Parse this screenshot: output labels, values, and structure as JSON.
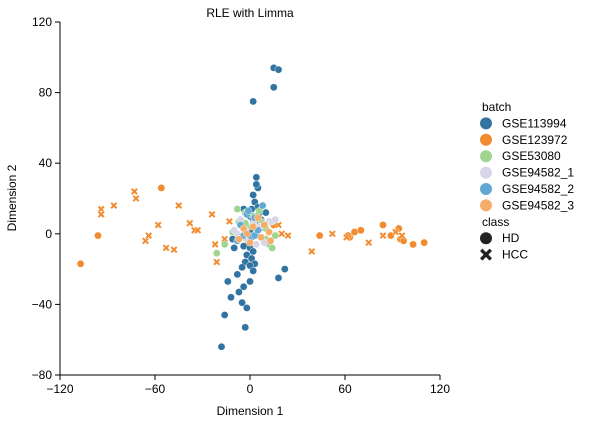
{
  "chart_data": {
    "type": "scatter",
    "title": "RLE with Limma",
    "xlabel": "Dimension 1",
    "ylabel": "Dimension 2",
    "xlim": [
      -120,
      120
    ],
    "ylim": [
      -80,
      120
    ],
    "xticks": [
      "−120",
      "−60",
      "0",
      "60",
      "120"
    ],
    "yticks": [
      "−80",
      "−40",
      "0",
      "40",
      "80",
      "120"
    ],
    "grid": false,
    "legend": {
      "placement": "right",
      "batch_title": "batch",
      "class_title": "class",
      "batches": [
        {
          "name": "GSE113994",
          "color": "#3274a1"
        },
        {
          "name": "GSE123972",
          "color": "#f28b2f"
        },
        {
          "name": "GSE53080",
          "color": "#9fd58e"
        },
        {
          "name": "GSE94582_1",
          "color": "#d6d6e8"
        },
        {
          "name": "GSE94582_2",
          "color": "#62a8d4"
        },
        {
          "name": "GSE94582_3",
          "color": "#f5ad6a"
        }
      ],
      "classes": [
        {
          "name": "HD",
          "marker": "circle"
        },
        {
          "name": "HCC",
          "marker": "cross"
        }
      ]
    },
    "series": [
      {
        "batch": "GSE113994",
        "color": "#3274a1",
        "marker": "circle",
        "points": [
          [
            15,
            94
          ],
          [
            18,
            93
          ],
          [
            15,
            83
          ],
          [
            2,
            75
          ],
          [
            4,
            32
          ],
          [
            5,
            26
          ],
          [
            4,
            28
          ],
          [
            2,
            22
          ],
          [
            3,
            18
          ],
          [
            5,
            15
          ],
          [
            1,
            14
          ],
          [
            6,
            12
          ],
          [
            0,
            10
          ],
          [
            2,
            8
          ],
          [
            4,
            6
          ],
          [
            3,
            4
          ],
          [
            1,
            3
          ],
          [
            0,
            1
          ],
          [
            2,
            -1
          ],
          [
            -2,
            -3
          ],
          [
            -1,
            -6
          ],
          [
            -4,
            -7
          ],
          [
            0,
            -8
          ],
          [
            2,
            -10
          ],
          [
            -2,
            -12
          ],
          [
            1,
            -14
          ],
          [
            -3,
            -16
          ],
          [
            3,
            -17
          ],
          [
            0,
            -18
          ],
          [
            -5,
            -19
          ],
          [
            2,
            -21
          ],
          [
            -8,
            -23
          ],
          [
            18,
            -25
          ],
          [
            22,
            -20
          ],
          [
            -14,
            -27
          ],
          [
            0,
            -27
          ],
          [
            -4,
            -30
          ],
          [
            -7,
            -33
          ],
          [
            -12,
            -36
          ],
          [
            -5,
            -39
          ],
          [
            -2,
            -42
          ],
          [
            -16,
            -46
          ],
          [
            -3,
            -53
          ],
          [
            -18,
            -64
          ],
          [
            -11,
            -3
          ],
          [
            -10,
            -8
          ],
          [
            7,
            8
          ],
          [
            10,
            12
          ],
          [
            -4,
            14
          ],
          [
            6,
            3
          ]
        ]
      },
      {
        "batch": "GSE123972",
        "color": "#f28b2f",
        "marker": "circle",
        "points": [
          [
            -107,
            -17
          ],
          [
            -96,
            -1
          ],
          [
            -56,
            26
          ],
          [
            15,
            5
          ],
          [
            44,
            -1
          ],
          [
            63,
            -2
          ],
          [
            66,
            1
          ],
          [
            70,
            2
          ],
          [
            84,
            5
          ],
          [
            89,
            -1
          ],
          [
            94,
            3
          ],
          [
            95,
            -3
          ],
          [
            97,
            -4
          ],
          [
            103,
            -6
          ],
          [
            110,
            -5
          ],
          [
            62,
            -1
          ]
        ]
      },
      {
        "batch": "GSE123972",
        "color": "#f28b2f",
        "marker": "cross",
        "points": [
          [
            -94,
            14
          ],
          [
            -94,
            11
          ],
          [
            -86,
            16
          ],
          [
            -73,
            24
          ],
          [
            -72,
            20
          ],
          [
            -66,
            -4
          ],
          [
            -64,
            -1
          ],
          [
            -58,
            5
          ],
          [
            -53,
            -8
          ],
          [
            -48,
            -9
          ],
          [
            -45,
            16
          ],
          [
            -38,
            6
          ],
          [
            -35,
            2
          ],
          [
            -33,
            2
          ],
          [
            -24,
            11
          ],
          [
            -22,
            -6
          ],
          [
            -21,
            -16
          ],
          [
            -16,
            -3
          ],
          [
            -13,
            7
          ],
          [
            18,
            5
          ],
          [
            20,
            0
          ],
          [
            24,
            -1
          ],
          [
            39,
            -10
          ],
          [
            52,
            0
          ],
          [
            61,
            -2
          ],
          [
            75,
            -5
          ],
          [
            84,
            -1
          ],
          [
            92,
            1
          ],
          [
            96,
            -1
          ]
        ]
      },
      {
        "batch": "GSE53080",
        "color": "#9fd58e",
        "marker": "circle",
        "points": [
          [
            -8,
            14
          ],
          [
            -3,
            12
          ],
          [
            2,
            10
          ],
          [
            6,
            13
          ],
          [
            10,
            3
          ],
          [
            -1,
            4
          ],
          [
            4,
            -1
          ],
          [
            -5,
            -2
          ],
          [
            -11,
            1
          ],
          [
            -16,
            -6
          ],
          [
            -21,
            -11
          ],
          [
            10,
            -3
          ],
          [
            12,
            -6
          ],
          [
            16,
            -1
          ],
          [
            -3,
            6
          ],
          [
            7,
            7
          ],
          [
            -7,
            7
          ],
          [
            14,
            -8
          ]
        ]
      },
      {
        "batch": "GSE94582_1",
        "color": "#d6d6e8",
        "marker": "circle",
        "points": [
          [
            -6,
            8
          ],
          [
            2,
            6
          ],
          [
            6,
            4
          ],
          [
            12,
            7
          ],
          [
            -3,
            2
          ],
          [
            -8,
            0
          ],
          [
            -2,
            -3
          ],
          [
            9,
            -5
          ],
          [
            14,
            7
          ],
          [
            16,
            8
          ],
          [
            4,
            -6
          ],
          [
            -10,
            2
          ]
        ]
      },
      {
        "batch": "GSE94582_2",
        "color": "#62a8d4",
        "marker": "circle",
        "points": [
          [
            -2,
            11
          ],
          [
            3,
            9
          ],
          [
            -6,
            5
          ],
          [
            -4,
            -1
          ],
          [
            1,
            -2
          ],
          [
            -8,
            -4
          ],
          [
            8,
            16
          ],
          [
            3,
            -1
          ],
          [
            -1,
            13
          ],
          [
            5,
            2
          ]
        ]
      },
      {
        "batch": "GSE94582_3",
        "color": "#f5ad6a",
        "marker": "circle",
        "points": [
          [
            -4,
            3
          ],
          [
            2,
            4
          ],
          [
            7,
            -2
          ],
          [
            12,
            1
          ],
          [
            -7,
            -3
          ],
          [
            9,
            5
          ],
          [
            0,
            -5
          ],
          [
            5,
            9
          ],
          [
            13,
            -4
          ],
          [
            -2,
            0
          ]
        ]
      }
    ]
  }
}
